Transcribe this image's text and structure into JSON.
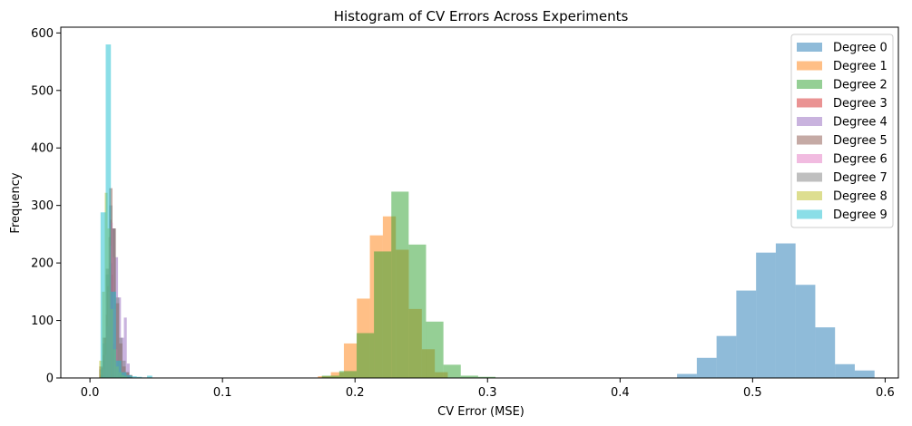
{
  "chart_data": {
    "type": "histogram",
    "title": "Histogram of CV Errors Across Experiments",
    "xlabel": "CV Error (MSE)",
    "ylabel": "Frequency",
    "xlim": [
      -0.022,
      0.61
    ],
    "ylim": [
      0,
      610
    ],
    "xticks": [
      0.0,
      0.1,
      0.2,
      0.3,
      0.4,
      0.5,
      0.6
    ],
    "xtick_labels": [
      "0.0",
      "0.1",
      "0.2",
      "0.3",
      "0.4",
      "0.5",
      "0.6"
    ],
    "yticks": [
      0,
      100,
      200,
      300,
      400,
      500,
      600
    ],
    "ytick_labels": [
      "0",
      "100",
      "200",
      "300",
      "400",
      "500",
      "600"
    ],
    "legend_position": "top-right",
    "bar_opacity": 0.5,
    "series": [
      {
        "name": "Degree 0",
        "color": "#1f77b4",
        "bin_start": 0.443,
        "bin_width": 0.0149,
        "counts": [
          7,
          35,
          73,
          152,
          218,
          234,
          162,
          88,
          24,
          13
        ]
      },
      {
        "name": "Degree 1",
        "color": "#ff7f0e",
        "bin_start": 0.172,
        "bin_width": 0.0098,
        "counts": [
          3,
          10,
          60,
          138,
          248,
          281,
          223,
          120,
          50,
          10
        ]
      },
      {
        "name": "Degree 2",
        "color": "#2ca02c",
        "bin_start": 0.175,
        "bin_width": 0.0131,
        "counts": [
          4,
          12,
          78,
          220,
          324,
          232,
          98,
          23,
          4,
          2
        ]
      },
      {
        "name": "Degree 3",
        "color": "#d62728",
        "bin_start": 0.0075,
        "bin_width": 0.0011,
        "counts": [
          6,
          18,
          40,
          70,
          110,
          160,
          245,
          275,
          180,
          60
        ]
      },
      {
        "name": "Degree 4",
        "color": "#9467bd",
        "bin_start": 0.008,
        "bin_width": 0.0022,
        "counts": [
          5,
          30,
          90,
          200,
          260,
          210,
          140,
          70,
          105,
          25
        ]
      },
      {
        "name": "Degree 5",
        "color": "#8c564b",
        "bin_start": 0.007,
        "bin_width": 0.0025,
        "counts": [
          20,
          70,
          190,
          330,
          260,
          130,
          60,
          20,
          10,
          5
        ]
      },
      {
        "name": "Degree 6",
        "color": "#e377c2",
        "bin_start": 0.01,
        "bin_width": 0.0012,
        "counts": [
          15,
          40,
          90,
          150,
          230,
          270,
          210,
          120,
          50,
          20
        ]
      },
      {
        "name": "Degree 7",
        "color": "#7f7f7f",
        "bin_start": 0.007,
        "bin_width": 0.0025,
        "counts": [
          15,
          60,
          180,
          300,
          260,
          140,
          70,
          30,
          10,
          5
        ]
      },
      {
        "name": "Degree 8",
        "color": "#bcbd22",
        "bin_start": 0.007,
        "bin_width": 0.0021,
        "counts": [
          30,
          150,
          322,
          260,
          120,
          50,
          20,
          10,
          5,
          3
        ]
      },
      {
        "name": "Degree 9",
        "color": "#17becf",
        "bin_start": 0.008,
        "bin_width": 0.0039,
        "counts": [
          288,
          580,
          150,
          30,
          10,
          5,
          3,
          2,
          1,
          4
        ]
      }
    ]
  }
}
